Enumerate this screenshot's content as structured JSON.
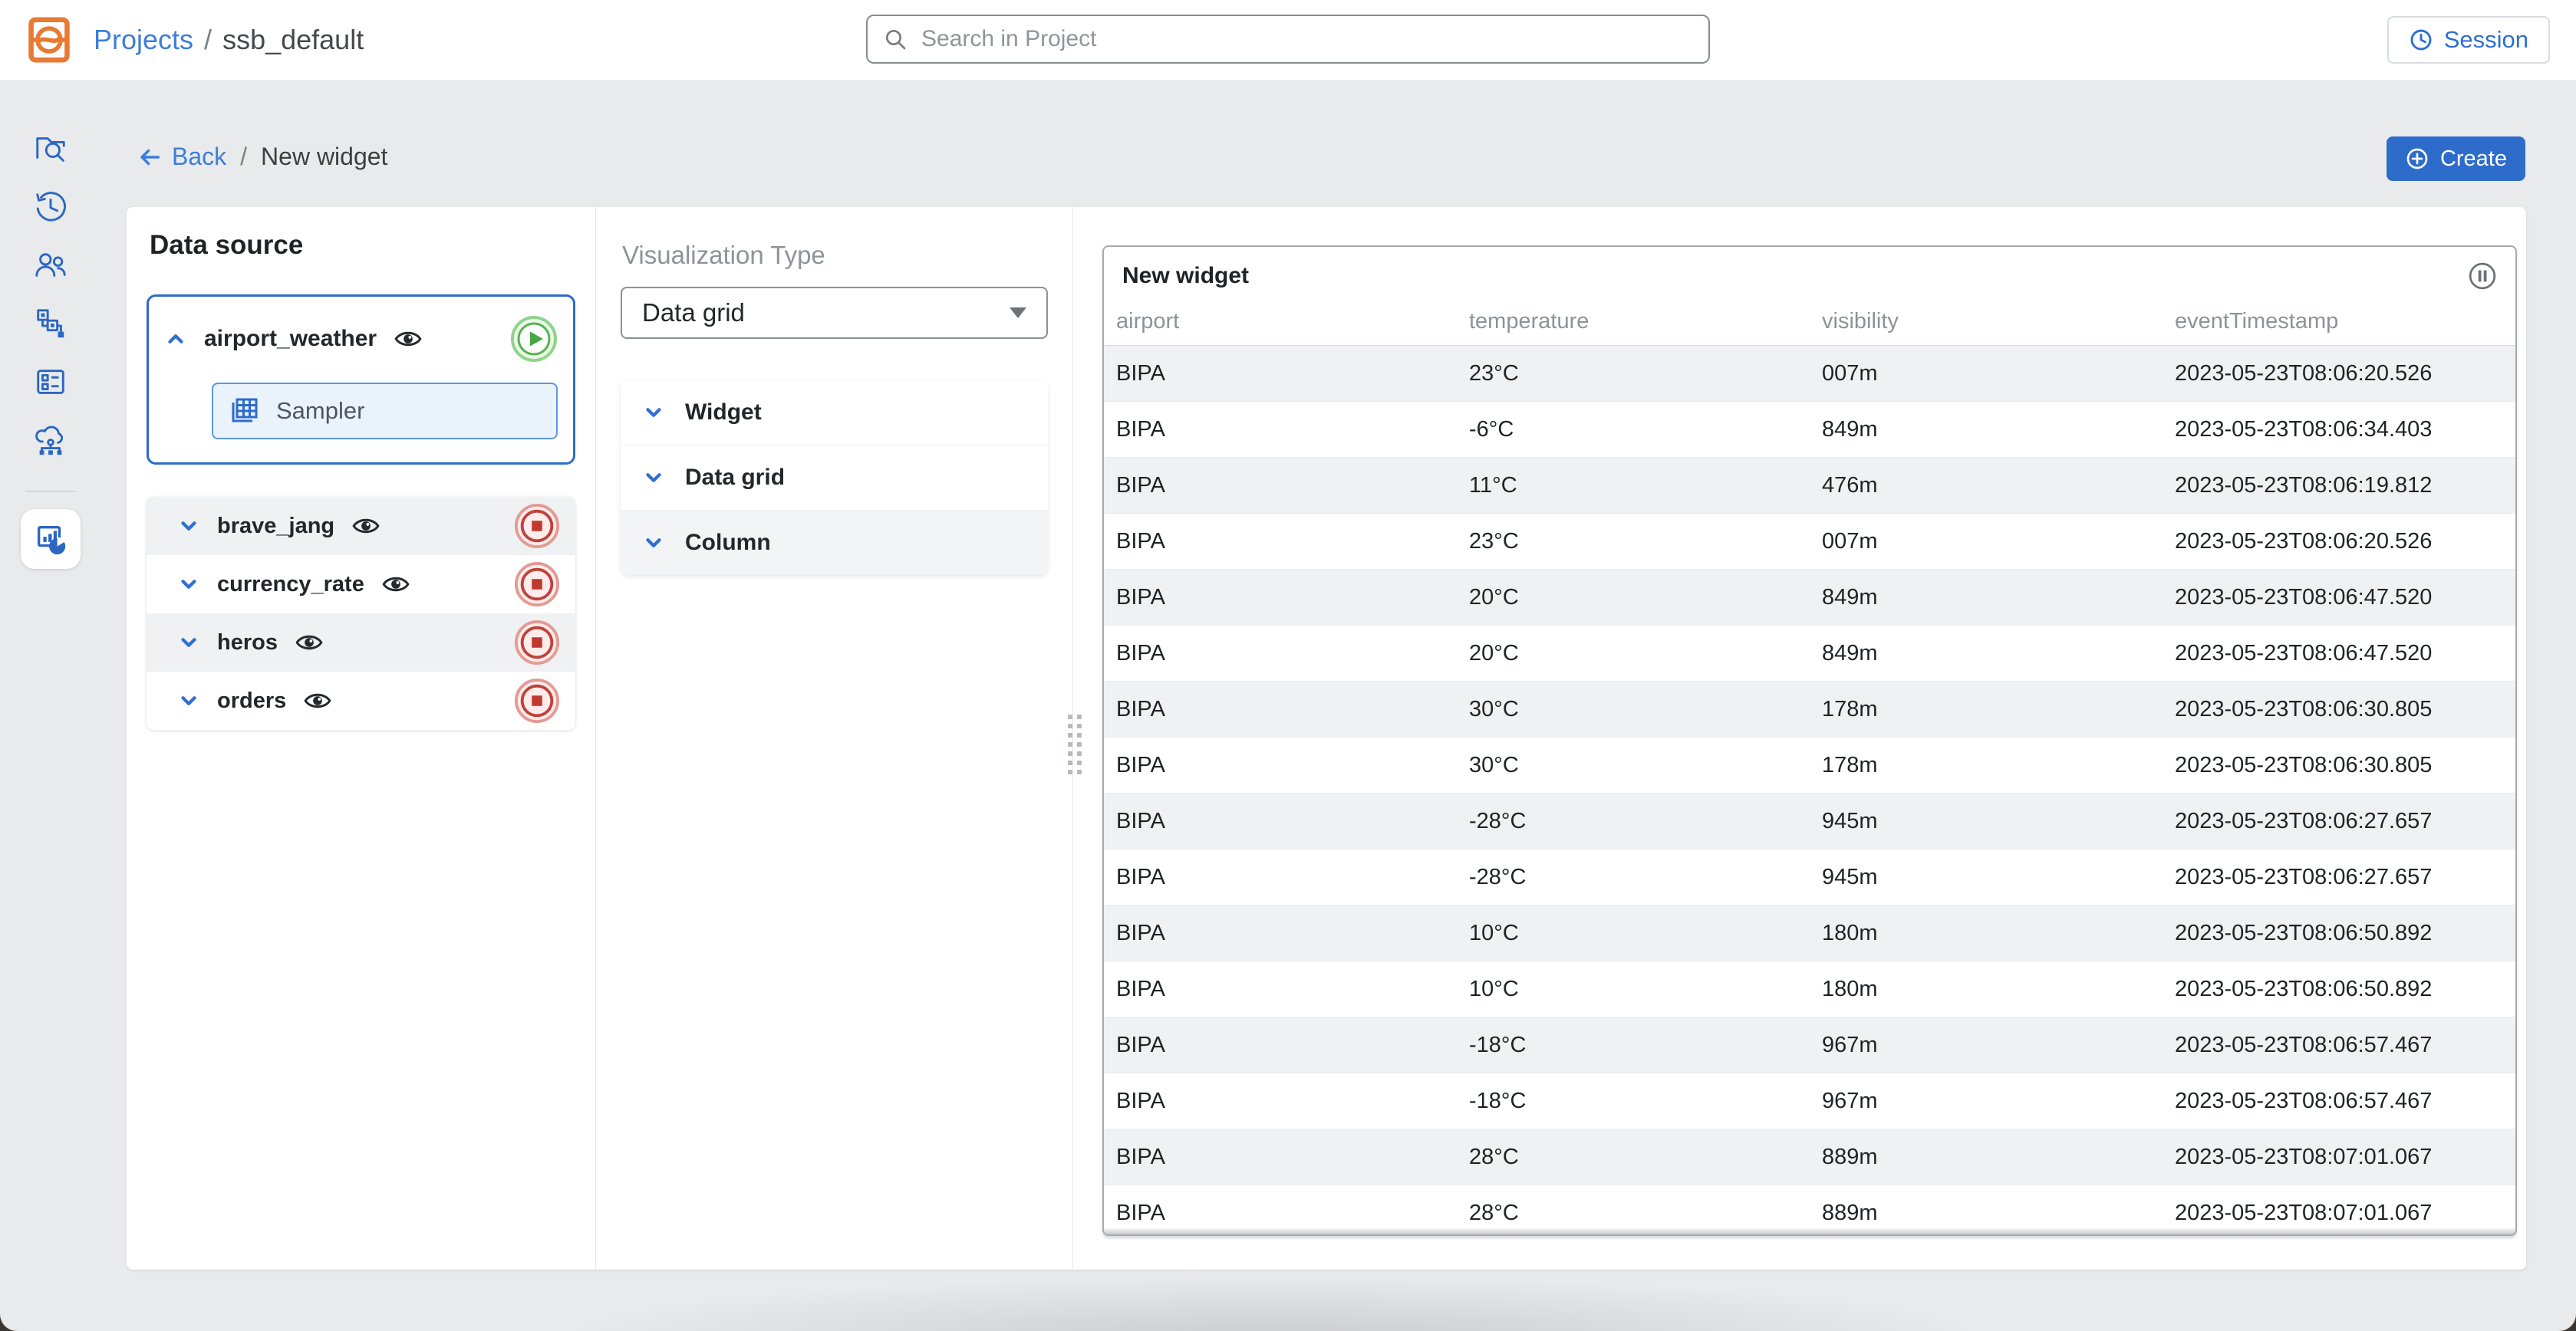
{
  "header": {
    "breadcrumb": {
      "root": "Projects",
      "separator": "/",
      "current": "ssb_default"
    },
    "search": {
      "placeholder": "Search in Project",
      "icon": "search-icon"
    },
    "session_button": {
      "label": "Session",
      "icon": "clock-icon"
    }
  },
  "sidebar": {
    "items": [
      {
        "icon": "project-explorer-icon",
        "active": false
      },
      {
        "icon": "history-icon",
        "active": false
      },
      {
        "icon": "users-icon",
        "active": false
      },
      {
        "icon": "jobs-flow-icon",
        "active": false
      },
      {
        "icon": "tables-panel-icon",
        "active": false
      },
      {
        "icon": "cloud-network-icon",
        "active": false
      },
      {
        "icon": "dashboards-charts-icon",
        "active": true
      }
    ]
  },
  "toolbar": {
    "back_label": "Back",
    "separator": "/",
    "page_title": "New widget",
    "create_label": "Create",
    "create_icon": "plus-circle-icon"
  },
  "data_source_panel": {
    "title": "Data source",
    "active_source": {
      "name": "airport_weather",
      "expanded": true,
      "status": "running",
      "status_icon": "play-circle-icon",
      "visibility_icon": "eye-icon",
      "child": {
        "label": "Sampler",
        "icon": "grid-table-icon",
        "selected": true
      }
    },
    "sources": [
      {
        "name": "brave_jang",
        "status": "stopped",
        "status_icon": "stop-circle-icon"
      },
      {
        "name": "currency_rate",
        "status": "stopped",
        "status_icon": "stop-circle-icon"
      },
      {
        "name": "heros",
        "status": "stopped",
        "status_icon": "stop-circle-icon"
      },
      {
        "name": "orders",
        "status": "stopped",
        "status_icon": "stop-circle-icon"
      }
    ]
  },
  "visualization_panel": {
    "title": "Visualization Type",
    "type_select": {
      "value": "Data grid"
    },
    "sections": [
      {
        "label": "Widget",
        "highlighted": false
      },
      {
        "label": "Data grid",
        "highlighted": false
      },
      {
        "label": "Column",
        "highlighted": true
      }
    ]
  },
  "preview": {
    "widget": {
      "title": "New widget",
      "control_icon": "pause-circle-icon",
      "table": {
        "columns": [
          "airport",
          "temperature",
          "visibility",
          "eventTimestamp"
        ],
        "rows": [
          [
            "BIPA",
            "23°C",
            "007m",
            "2023-05-23T08:06:20.526"
          ],
          [
            "BIPA",
            "-6°C",
            "849m",
            "2023-05-23T08:06:34.403"
          ],
          [
            "BIPA",
            "11°C",
            "476m",
            "2023-05-23T08:06:19.812"
          ],
          [
            "BIPA",
            "23°C",
            "007m",
            "2023-05-23T08:06:20.526"
          ],
          [
            "BIPA",
            "20°C",
            "849m",
            "2023-05-23T08:06:47.520"
          ],
          [
            "BIPA",
            "20°C",
            "849m",
            "2023-05-23T08:06:47.520"
          ],
          [
            "BIPA",
            "30°C",
            "178m",
            "2023-05-23T08:06:30.805"
          ],
          [
            "BIPA",
            "30°C",
            "178m",
            "2023-05-23T08:06:30.805"
          ],
          [
            "BIPA",
            "-28°C",
            "945m",
            "2023-05-23T08:06:27.657"
          ],
          [
            "BIPA",
            "-28°C",
            "945m",
            "2023-05-23T08:06:27.657"
          ],
          [
            "BIPA",
            "10°C",
            "180m",
            "2023-05-23T08:06:50.892"
          ],
          [
            "BIPA",
            "10°C",
            "180m",
            "2023-05-23T08:06:50.892"
          ],
          [
            "BIPA",
            "-18°C",
            "967m",
            "2023-05-23T08:06:57.467"
          ],
          [
            "BIPA",
            "-18°C",
            "967m",
            "2023-05-23T08:06:57.467"
          ],
          [
            "BIPA",
            "28°C",
            "889m",
            "2023-05-23T08:07:01.067"
          ],
          [
            "BIPA",
            "28°C",
            "889m",
            "2023-05-23T08:07:01.067"
          ]
        ]
      }
    }
  },
  "colors": {
    "accent_blue": "#2d6ccb",
    "link_blue": "#3d7ed8",
    "sidebar_icon_blue": "#2b66c2",
    "logo_orange": "#e87a33",
    "stop_red": "#c0392f",
    "play_green": "#47a743",
    "row_alt_gray": "#f0f1f3",
    "page_bg": "#e9eaec",
    "muted_text": "#8d939a"
  }
}
